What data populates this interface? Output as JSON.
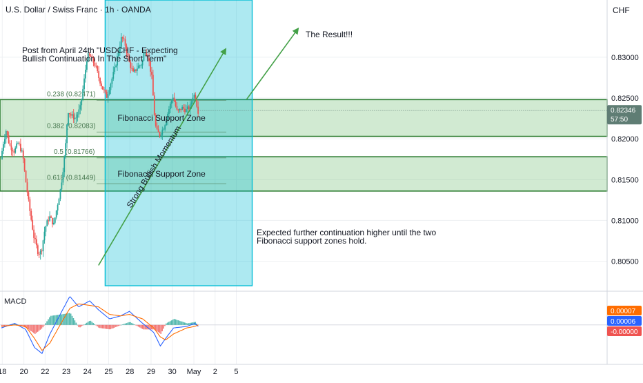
{
  "header": {
    "symbol": "U.S. Dollar / Swiss Franc · 1h · OANDA",
    "currency": "CHF"
  },
  "macd_label": "MACD",
  "colors": {
    "up": "#26a69a",
    "down": "#ef5350",
    "box": "#00bcd4",
    "zone": "#4caf50",
    "arrow": "#43a047",
    "macd": "#2962ff",
    "signal": "#ff6d00"
  },
  "chart_data": [
    {
      "type": "candlestick",
      "title": "U.S. Dollar / Swiss Franc · 1h · OANDA",
      "ylabel": "CHF",
      "ylim": [
        0.8015,
        0.837
      ],
      "grid": true,
      "x_ticks": [
        {
          "label": "18",
          "i": 2
        },
        {
          "label": "20",
          "i": 51
        },
        {
          "label": "22",
          "i": 99
        },
        {
          "label": "23",
          "i": 147
        },
        {
          "label": "24",
          "i": 195
        },
        {
          "label": "25",
          "i": 243
        },
        {
          "label": "28",
          "i": 291
        },
        {
          "label": "29",
          "i": 339
        },
        {
          "label": "30",
          "i": 387
        },
        {
          "label": "May",
          "i": 436
        },
        {
          "label": "2",
          "i": 484
        },
        {
          "label": "5",
          "i": 532
        }
      ],
      "y_ticks": [
        "0.80500",
        "0.81000",
        "0.81500",
        "0.82000",
        "0.82500",
        "0.83000"
      ],
      "y_tick_values": [
        0.805,
        0.81,
        0.815,
        0.82,
        0.825,
        0.83
      ],
      "last_price": "0.82346",
      "countdown": "57:50",
      "fib_levels": [
        {
          "label": "0.238 (0.82471)",
          "value": 0.82471
        },
        {
          "label": "0.382 (0.82083)",
          "value": 0.82083
        },
        {
          "label": "0.5 (0.81766)",
          "value": 0.81766
        },
        {
          "label": "0.618 (0.81449)",
          "value": 0.81449
        }
      ],
      "zones": [
        {
          "label": "Fibonacci Support Zone",
          "top": 0.8248,
          "bottom": 0.8203
        },
        {
          "label": "Fibonacci Support Zone",
          "top": 0.8178,
          "bottom": 0.8136
        }
      ],
      "annotations": {
        "post": [
          "Post from April 24th \"USDCHF - Expecting",
          "Bullish Continuation In The Short Term\""
        ],
        "result": "The Result!!!",
        "momentum": "Strong Bullish Momentum",
        "expected": [
          "Expected further continuation higher until the two",
          "Fibonacci support zones hold."
        ]
      },
      "result_box": {
        "from_i": 235,
        "to_i": 568,
        "top": 0.837,
        "bottom": 0.802
      },
      "anchors": [
        {
          "i": 0,
          "v": 0.8175
        },
        {
          "i": 6,
          "v": 0.8195
        },
        {
          "i": 12,
          "v": 0.821
        },
        {
          "i": 20,
          "v": 0.8192
        },
        {
          "i": 30,
          "v": 0.8185
        },
        {
          "i": 40,
          "v": 0.8195
        },
        {
          "i": 50,
          "v": 0.818
        },
        {
          "i": 55,
          "v": 0.8155
        },
        {
          "i": 65,
          "v": 0.8115
        },
        {
          "i": 75,
          "v": 0.808
        },
        {
          "i": 85,
          "v": 0.806
        },
        {
          "i": 92,
          "v": 0.8062
        },
        {
          "i": 100,
          "v": 0.809
        },
        {
          "i": 110,
          "v": 0.8105
        },
        {
          "i": 120,
          "v": 0.8095
        },
        {
          "i": 128,
          "v": 0.8118
        },
        {
          "i": 136,
          "v": 0.814
        },
        {
          "i": 146,
          "v": 0.8185
        },
        {
          "i": 152,
          "v": 0.8235
        },
        {
          "i": 160,
          "v": 0.8228
        },
        {
          "i": 170,
          "v": 0.8225
        },
        {
          "i": 180,
          "v": 0.8238
        },
        {
          "i": 188,
          "v": 0.8268
        },
        {
          "i": 196,
          "v": 0.8302
        },
        {
          "i": 204,
          "v": 0.83
        },
        {
          "i": 214,
          "v": 0.829
        },
        {
          "i": 222,
          "v": 0.8275
        },
        {
          "i": 232,
          "v": 0.826
        },
        {
          "i": 240,
          "v": 0.8252
        },
        {
          "i": 250,
          "v": 0.827
        },
        {
          "i": 258,
          "v": 0.8285
        },
        {
          "i": 266,
          "v": 0.8305
        },
        {
          "i": 274,
          "v": 0.8325
        },
        {
          "i": 282,
          "v": 0.8315
        },
        {
          "i": 290,
          "v": 0.8295
        },
        {
          "i": 300,
          "v": 0.828
        },
        {
          "i": 310,
          "v": 0.8288
        },
        {
          "i": 320,
          "v": 0.8292
        },
        {
          "i": 326,
          "v": 0.831
        },
        {
          "i": 334,
          "v": 0.83
        },
        {
          "i": 342,
          "v": 0.8275
        },
        {
          "i": 348,
          "v": 0.823
        },
        {
          "i": 352,
          "v": 0.821
        },
        {
          "i": 360,
          "v": 0.8205
        },
        {
          "i": 370,
          "v": 0.8215
        },
        {
          "i": 380,
          "v": 0.8235
        },
        {
          "i": 390,
          "v": 0.8252
        },
        {
          "i": 400,
          "v": 0.8232
        },
        {
          "i": 410,
          "v": 0.8238
        },
        {
          "i": 420,
          "v": 0.8235
        },
        {
          "i": 430,
          "v": 0.824
        },
        {
          "i": 436,
          "v": 0.8255
        },
        {
          "i": 442,
          "v": 0.825
        },
        {
          "i": 446,
          "v": 0.8234
        }
      ],
      "macd_ylim": [
        -0.00235,
        0.00215
      ],
      "macd_anchors": [
        {
          "i": 0,
          "m": -0.0002,
          "s": -0.0001
        },
        {
          "i": 30,
          "m": 0.0001,
          "s": 0.0
        },
        {
          "i": 55,
          "m": -0.0003,
          "s": -0.0001
        },
        {
          "i": 75,
          "m": -0.0015,
          "s": -0.0009
        },
        {
          "i": 92,
          "m": -0.0019,
          "s": -0.0017
        },
        {
          "i": 110,
          "m": -0.0006,
          "s": -0.0012
        },
        {
          "i": 135,
          "m": 0.0008,
          "s": 0.0001
        },
        {
          "i": 155,
          "m": 0.0019,
          "s": 0.0011
        },
        {
          "i": 175,
          "m": 0.0012,
          "s": 0.0014
        },
        {
          "i": 200,
          "m": 0.0016,
          "s": 0.0013
        },
        {
          "i": 220,
          "m": 0.001,
          "s": 0.0012
        },
        {
          "i": 245,
          "m": 0.0004,
          "s": 0.0007
        },
        {
          "i": 270,
          "m": 0.0006,
          "s": 0.0006
        },
        {
          "i": 290,
          "m": 0.0009,
          "s": 0.0007
        },
        {
          "i": 320,
          "m": 0.0001,
          "s": 0.0004
        },
        {
          "i": 345,
          "m": -0.0005,
          "s": -0.0002
        },
        {
          "i": 360,
          "m": -0.0014,
          "s": -0.0008
        },
        {
          "i": 372,
          "m": -0.0009,
          "s": -0.001
        },
        {
          "i": 390,
          "m": -0.0002,
          "s": -0.0006
        },
        {
          "i": 420,
          "m": -0.0001,
          "s": -0.0002
        },
        {
          "i": 438,
          "m": 0.0001,
          "s": -0.0001
        },
        {
          "i": 446,
          "m": -0.0001,
          "s": 0.0
        }
      ],
      "macd_values": {
        "macd": "0.00006",
        "signal": "0.00007",
        "histogram": "-0.00000"
      }
    }
  ]
}
